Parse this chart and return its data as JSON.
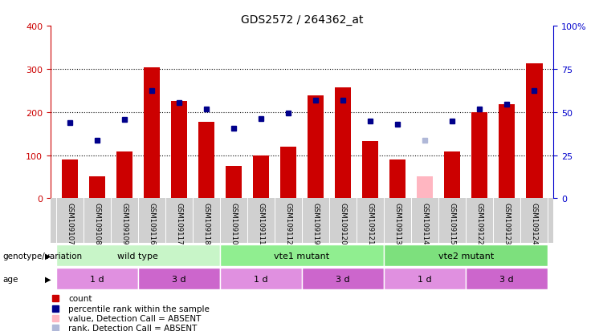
{
  "title": "GDS2572 / 264362_at",
  "samples": [
    "GSM109107",
    "GSM109108",
    "GSM109109",
    "GSM109116",
    "GSM109117",
    "GSM109118",
    "GSM109110",
    "GSM109111",
    "GSM109112",
    "GSM109119",
    "GSM109120",
    "GSM109121",
    "GSM109113",
    "GSM109114",
    "GSM109115",
    "GSM109122",
    "GSM109123",
    "GSM109124"
  ],
  "bar_values": [
    90,
    50,
    108,
    304,
    225,
    178,
    75,
    100,
    120,
    238,
    258,
    132,
    90,
    null,
    108,
    200,
    218,
    313
  ],
  "bar_absent": [
    null,
    null,
    null,
    null,
    null,
    null,
    null,
    null,
    null,
    null,
    null,
    null,
    null,
    50,
    null,
    null,
    null,
    null
  ],
  "rank_values": [
    175,
    135,
    182,
    250,
    222,
    207,
    162,
    185,
    198,
    228,
    227,
    180,
    172,
    null,
    180,
    207,
    218,
    250
  ],
  "rank_absent": [
    null,
    null,
    null,
    null,
    null,
    null,
    null,
    null,
    null,
    null,
    null,
    null,
    null,
    135,
    null,
    null,
    null,
    null
  ],
  "bar_color": "#cc0000",
  "bar_absent_color": "#ffb6c1",
  "rank_color": "#00008b",
  "rank_absent_color": "#b0b8d8",
  "ylim_left": [
    0,
    400
  ],
  "yticks_left": [
    0,
    100,
    200,
    300,
    400
  ],
  "yticks_right": [
    0,
    25,
    50,
    75,
    100
  ],
  "yticklabels_right": [
    "0",
    "25",
    "50",
    "75",
    "100%"
  ],
  "genotype_groups": [
    {
      "label": "wild type",
      "start": 0,
      "end": 6
    },
    {
      "label": "vte1 mutant",
      "start": 6,
      "end": 12
    },
    {
      "label": "vte2 mutant",
      "start": 12,
      "end": 18
    }
  ],
  "genotype_colors": [
    "#c8f5c8",
    "#90ee90",
    "#7de07d"
  ],
  "age_groups": [
    {
      "label": "1 d",
      "start": 0,
      "end": 3
    },
    {
      "label": "3 d",
      "start": 3,
      "end": 6
    },
    {
      "label": "1 d",
      "start": 6,
      "end": 9
    },
    {
      "label": "3 d",
      "start": 9,
      "end": 12
    },
    {
      "label": "1 d",
      "start": 12,
      "end": 15
    },
    {
      "label": "3 d",
      "start": 15,
      "end": 18
    }
  ],
  "age_colors": [
    "#e090e0",
    "#cc66cc",
    "#e090e0",
    "#cc66cc",
    "#e090e0",
    "#cc66cc"
  ],
  "legend_items": [
    {
      "label": "count",
      "color": "#cc0000"
    },
    {
      "label": "percentile rank within the sample",
      "color": "#00008b"
    },
    {
      "label": "value, Detection Call = ABSENT",
      "color": "#ffb6c1"
    },
    {
      "label": "rank, Detection Call = ABSENT",
      "color": "#b0b8d8"
    }
  ],
  "genotype_label": "genotype/variation",
  "age_label": "age",
  "background_color": "#ffffff",
  "tick_color_left": "#cc0000",
  "tick_color_right": "#0000cc",
  "bar_width": 0.6,
  "marker_size": 5
}
